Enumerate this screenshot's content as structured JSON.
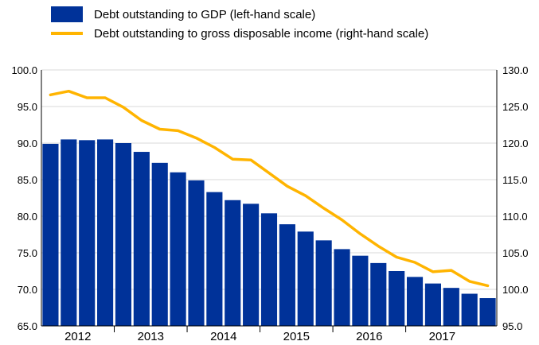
{
  "chart_data": {
    "type": "bar",
    "series": [
      {
        "name": "Debt outstanding to GDP (left-hand scale)",
        "kind": "bar",
        "axis": "left",
        "color": "#003299",
        "values": [
          89.9,
          90.5,
          90.4,
          90.5,
          90.0,
          88.8,
          87.3,
          86.0,
          84.9,
          83.3,
          82.2,
          81.7,
          80.4,
          78.9,
          77.9,
          76.7,
          75.5,
          74.6,
          73.6,
          72.5,
          71.7,
          70.8,
          70.2,
          69.4,
          68.8
        ]
      },
      {
        "name": "Debt outstanding to gross disposable income (right-hand scale)",
        "kind": "line",
        "axis": "right",
        "color": "#FFB400",
        "values": [
          126.6,
          127.1,
          126.2,
          126.2,
          124.9,
          123.1,
          121.9,
          121.7,
          120.7,
          119.4,
          117.8,
          117.7,
          115.9,
          114.1,
          112.8,
          111.1,
          109.5,
          107.6,
          105.9,
          104.4,
          103.7,
          102.4,
          102.6,
          101.1,
          100.5
        ]
      }
    ],
    "x_labels": [
      "2012",
      "2013",
      "2014",
      "2015",
      "2016",
      "2017"
    ],
    "y_left": {
      "min": 65,
      "max": 100,
      "ticks": [
        "100.0",
        "95.0",
        "90.0",
        "85.0",
        "80.0",
        "75.0",
        "70.0",
        "65.0"
      ]
    },
    "y_right": {
      "min": 95,
      "max": 130,
      "ticks": [
        "130.0",
        "125.0",
        "120.0",
        "115.0",
        "110.0",
        "105.0",
        "100.0",
        "95.0"
      ]
    },
    "grid": "horizontal",
    "legend_position": "top-left"
  }
}
